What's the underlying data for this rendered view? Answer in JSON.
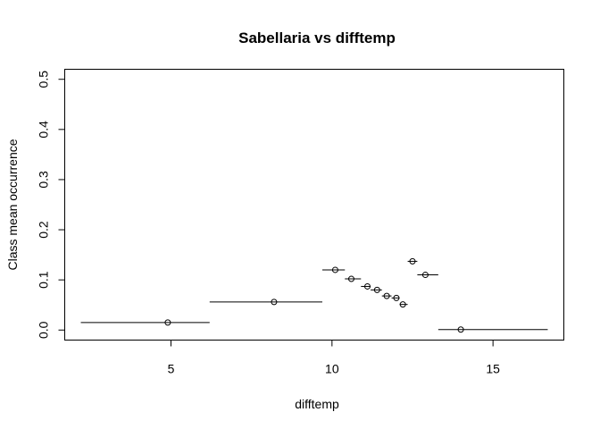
{
  "chart_data": {
    "type": "scatter",
    "title": "Sabellaria vs difftemp",
    "xlabel": "difftemp",
    "ylabel": "Class mean occurrence",
    "xlim": [
      1.7,
      17.2
    ],
    "ylim": [
      -0.02,
      0.52
    ],
    "xticks": [
      5,
      10,
      15
    ],
    "yticks": [
      0.0,
      0.1,
      0.2,
      0.3,
      0.4,
      0.5
    ],
    "grid": false,
    "legend": "none",
    "points": [
      {
        "x": 4.9,
        "y": 0.015,
        "x_min": 2.2,
        "x_max": 6.2
      },
      {
        "x": 8.2,
        "y": 0.056,
        "x_min": 6.2,
        "x_max": 9.7
      },
      {
        "x": 10.1,
        "y": 0.12,
        "x_min": 9.7,
        "x_max": 10.4
      },
      {
        "x": 10.6,
        "y": 0.102,
        "x_min": 10.4,
        "x_max": 10.9
      },
      {
        "x": 11.1,
        "y": 0.087,
        "x_min": 10.9,
        "x_max": 11.2
      },
      {
        "x": 11.4,
        "y": 0.08,
        "x_min": 11.2,
        "x_max": 11.55
      },
      {
        "x": 11.7,
        "y": 0.068,
        "x_min": 11.55,
        "x_max": 11.85
      },
      {
        "x": 12.0,
        "y": 0.064,
        "x_min": 11.85,
        "x_max": 12.1
      },
      {
        "x": 12.2,
        "y": 0.051,
        "x_min": 12.1,
        "x_max": 12.35
      },
      {
        "x": 12.5,
        "y": 0.137,
        "x_min": 12.35,
        "x_max": 12.65
      },
      {
        "x": 12.9,
        "y": 0.11,
        "x_min": 12.65,
        "x_max": 13.3
      },
      {
        "x": 14.0,
        "y": 0.001,
        "x_min": 13.3,
        "x_max": 16.7
      }
    ]
  }
}
